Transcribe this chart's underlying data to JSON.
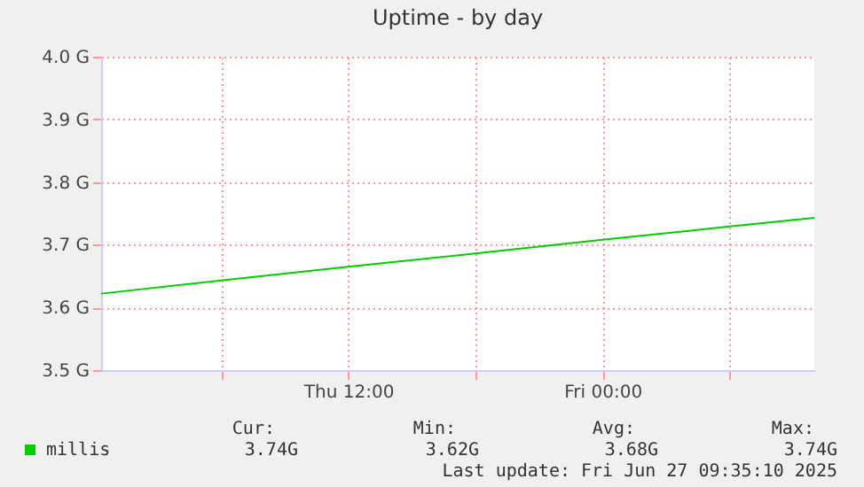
{
  "chart_data": {
    "type": "line",
    "title": "Uptime - by day",
    "x": [
      "2025-06-26T00:20",
      "2025-06-26T06:00",
      "2025-06-26T12:00",
      "2025-06-26T18:00",
      "2025-06-27T00:00",
      "2025-06-27T06:00",
      "2025-06-27T10:00"
    ],
    "series": [
      {
        "name": "millis",
        "color": "#00cc00",
        "values": [
          3.622,
          3.643,
          3.665,
          3.686,
          3.708,
          3.729,
          3.743
        ]
      }
    ],
    "xlim": [
      "2025-06-26T00:20",
      "2025-06-27T10:00"
    ],
    "xticks": [
      {
        "value": "2025-06-26T06:00",
        "label": null
      },
      {
        "value": "2025-06-26T12:00",
        "label": "Thu 12:00"
      },
      {
        "value": "2025-06-26T18:00",
        "label": null
      },
      {
        "value": "2025-06-27T00:00",
        "label": "Fri 00:00"
      },
      {
        "value": "2025-06-27T06:00",
        "label": null
      }
    ],
    "ylim": [
      3.5,
      4.0
    ],
    "yticks": [
      {
        "value": 3.5,
        "label": "3.5 G"
      },
      {
        "value": 3.6,
        "label": "3.6 G"
      },
      {
        "value": 3.7,
        "label": "3.7 G"
      },
      {
        "value": 3.8,
        "label": "3.8 G"
      },
      {
        "value": 3.9,
        "label": "3.9 G"
      },
      {
        "value": 4.0,
        "label": "4.0 G"
      }
    ],
    "grid": true,
    "legend": "bottom left",
    "marker": "none",
    "line_style": "solid",
    "annotations": [
      "Cur:",
      "Min:",
      "Avg:",
      "Max:",
      "3.74G",
      "3.62G",
      "3.68G",
      "3.74G",
      "Last update: Fri Jun 27 09:35:10 2025"
    ]
  }
}
